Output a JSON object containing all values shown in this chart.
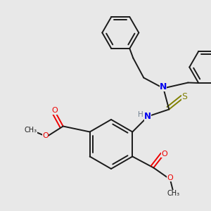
{
  "bg_color": "#e8e8e8",
  "line_color": "#1a1a1a",
  "N_color": "#0000ee",
  "O_color": "#ee0000",
  "S_color": "#808000",
  "H_color": "#708090",
  "line_width": 1.4,
  "fig_w": 3.0,
  "fig_h": 3.0,
  "dpi": 100,
  "xlim": [
    0,
    300
  ],
  "ylim": [
    0,
    300
  ]
}
